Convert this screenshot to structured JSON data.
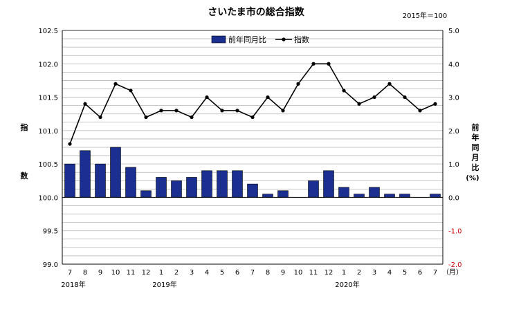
{
  "chart_data": {
    "type": "bar",
    "title": "さいたま市の総合指数",
    "base_note": "2015年＝100",
    "x_unit": "（月）",
    "categories": [
      "7",
      "8",
      "9",
      "10",
      "11",
      "12",
      "1",
      "2",
      "3",
      "4",
      "5",
      "6",
      "7",
      "8",
      "9",
      "10",
      "11",
      "12",
      "1",
      "2",
      "3",
      "4",
      "5",
      "6",
      "7"
    ],
    "year_labels": [
      {
        "index": 0,
        "label": "2018年"
      },
      {
        "index": 6,
        "label": "2019年"
      },
      {
        "index": 18,
        "label": "2020年"
      }
    ],
    "y_left": {
      "label": [
        "指",
        "数"
      ],
      "range": [
        99.0,
        102.5
      ],
      "ticks": [
        "99.0",
        "99.5",
        "100.0",
        "100.5",
        "101.0",
        "101.5",
        "102.0",
        "102.5"
      ]
    },
    "y_right": {
      "label": [
        "前",
        "年",
        "同",
        "月",
        "比",
        "(%)"
      ],
      "range": [
        -2.0,
        5.0
      ],
      "ticks": [
        "-2.0",
        "-1.0",
        "0.0",
        "1.0",
        "2.0",
        "3.0",
        "4.0",
        "5.0"
      ]
    },
    "series": [
      {
        "name": "前年同月比",
        "type": "bar",
        "axis": "right",
        "color": "#1a2f8f",
        "values": [
          1.0,
          1.4,
          1.0,
          1.5,
          0.9,
          0.2,
          0.6,
          0.5,
          0.6,
          0.8,
          0.8,
          0.8,
          0.4,
          0.1,
          0.2,
          0.0,
          0.5,
          0.8,
          0.3,
          0.1,
          0.3,
          0.1,
          0.1,
          0.0,
          0.1
        ]
      },
      {
        "name": "指数",
        "type": "line",
        "axis": "left",
        "color": "#000000",
        "values": [
          100.8,
          101.4,
          101.2,
          101.7,
          101.6,
          101.2,
          101.3,
          101.3,
          101.2,
          101.5,
          101.3,
          101.3,
          101.2,
          101.5,
          101.3,
          101.7,
          102.0,
          102.0,
          101.6,
          101.4,
          101.5,
          101.7,
          101.5,
          101.3,
          101.4
        ]
      }
    ],
    "grid": true,
    "legend": "top-center"
  }
}
